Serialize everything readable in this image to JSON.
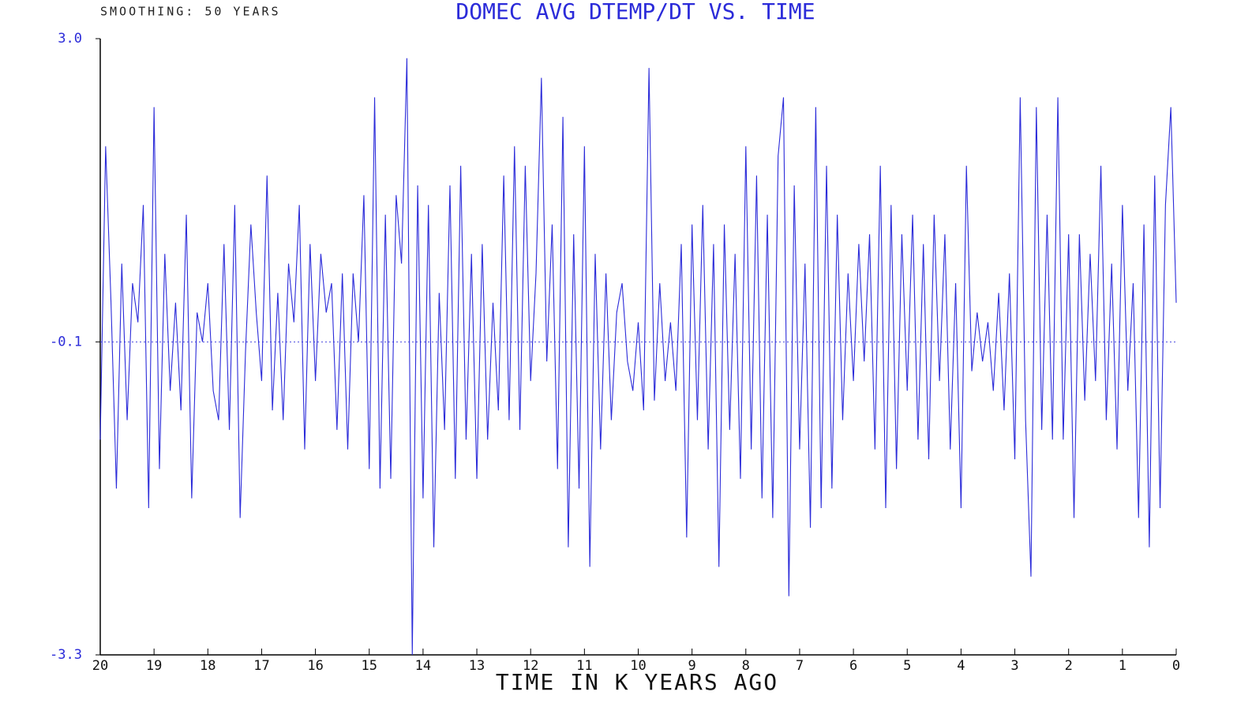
{
  "chart_data": {
    "type": "line",
    "title": "DOMEC AVG DTEMP/DT VS. TIME",
    "subtitle": "SMOOTHING: 50 YEARS",
    "x_label": "TIME IN K YEARS AGO",
    "color": "#2b2bd9",
    "xlim": [
      20,
      0
    ],
    "xticks": [
      20,
      19,
      18,
      17,
      16,
      15,
      14,
      13,
      12,
      11,
      10,
      9,
      8,
      7,
      6,
      5,
      4,
      3,
      2,
      1,
      0
    ],
    "ylim": [
      -3.3,
      3.0
    ],
    "yticks": [
      {
        "value": 3,
        "label": "3.0"
      },
      -0.1,
      -3.3
    ],
    "reference_line": -0.1,
    "x": [
      20,
      19.9,
      19.8,
      19.7,
      19.6,
      19.5,
      19.4,
      19.3,
      19.2,
      19.1,
      19,
      18.9,
      18.8,
      18.7,
      18.6,
      18.5,
      18.4,
      18.3,
      18.2,
      18.1,
      18,
      17.9,
      17.8,
      17.7,
      17.6,
      17.5,
      17.4,
      17.3,
      17.2,
      17.1,
      17,
      16.9,
      16.8,
      16.7,
      16.6,
      16.5,
      16.4,
      16.3,
      16.2,
      16.1,
      16,
      15.9,
      15.8,
      15.7,
      15.6,
      15.5,
      15.4,
      15.3,
      15.2,
      15.1,
      15,
      14.9,
      14.8,
      14.7,
      14.6,
      14.5,
      14.4,
      14.3,
      14.2,
      14.1,
      14,
      13.9,
      13.8,
      13.7,
      13.6,
      13.5,
      13.4,
      13.3,
      13.2,
      13.1,
      13,
      12.9,
      12.8,
      12.7,
      12.6,
      12.5,
      12.4,
      12.3,
      12.2,
      12.1,
      12,
      11.9,
      11.8,
      11.7,
      11.6,
      11.5,
      11.4,
      11.3,
      11.2,
      11.1,
      11,
      10.9,
      10.8,
      10.7,
      10.6,
      10.5,
      10.4,
      10.3,
      10.2,
      10.1,
      10,
      9.9,
      9.8,
      9.7,
      9.6,
      9.5,
      9.4,
      9.3,
      9.2,
      9.1,
      9,
      8.9,
      8.8,
      8.7,
      8.6,
      8.5,
      8.4,
      8.3,
      8.2,
      8.1,
      8,
      7.9,
      7.8,
      7.7,
      7.6,
      7.5,
      7.4,
      7.3,
      7.2,
      7.1,
      7,
      6.9,
      6.8,
      6.7,
      6.6,
      6.5,
      6.4,
      6.3,
      6.2,
      6.1,
      6,
      5.9,
      5.8,
      5.7,
      5.6,
      5.5,
      5.4,
      5.3,
      5.2,
      5.1,
      5,
      4.9,
      4.8,
      4.7,
      4.6,
      4.5,
      4.4,
      4.3,
      4.2,
      4.1,
      4,
      3.9,
      3.8,
      3.7,
      3.6,
      3.5,
      3.4,
      3.3,
      3.2,
      3.1,
      3,
      2.9,
      2.8,
      2.7,
      2.6,
      2.5,
      2.4,
      2.3,
      2.2,
      2.1,
      2,
      1.9,
      1.8,
      1.7,
      1.6,
      1.5,
      1.4,
      1.3,
      1.2,
      1.1,
      1,
      0.9,
      0.8,
      0.7,
      0.6,
      0.5,
      0.4,
      0.3,
      0.2,
      0.1,
      0
    ],
    "values": [
      -1.1,
      1.9,
      0.3,
      -1.6,
      0.7,
      -0.9,
      0.5,
      0.1,
      1.3,
      -1.8,
      2.3,
      -1.4,
      0.8,
      -0.6,
      0.3,
      -0.8,
      1.2,
      -1.7,
      0.2,
      -0.1,
      0.5,
      -0.6,
      -0.9,
      0.9,
      -1.0,
      1.3,
      -1.9,
      -0.2,
      1.1,
      0.2,
      -0.5,
      1.6,
      -0.8,
      0.4,
      -0.9,
      0.7,
      0.1,
      1.3,
      -1.2,
      0.9,
      -0.5,
      0.8,
      0.2,
      0.5,
      -1.0,
      0.6,
      -1.2,
      0.6,
      -0.1,
      1.4,
      -1.4,
      2.4,
      -1.6,
      1.2,
      -1.5,
      1.4,
      0.7,
      2.8,
      -3.3,
      1.5,
      -1.7,
      1.3,
      -2.2,
      0.4,
      -1.0,
      1.5,
      -1.5,
      1.7,
      -1.1,
      0.8,
      -1.5,
      0.9,
      -1.1,
      0.3,
      -0.8,
      1.6,
      -0.9,
      1.9,
      -1.0,
      1.7,
      -0.5,
      0.6,
      2.6,
      -0.3,
      1.1,
      -1.4,
      2.2,
      -2.2,
      1.0,
      -1.6,
      1.9,
      -2.4,
      0.8,
      -1.2,
      0.6,
      -0.9,
      0.2,
      0.5,
      -0.3,
      -0.6,
      0.1,
      -0.8,
      2.7,
      -0.7,
      0.5,
      -0.5,
      0.1,
      -0.6,
      0.9,
      -2.1,
      1.1,
      -0.9,
      1.3,
      -1.2,
      0.9,
      -2.4,
      1.1,
      -1.0,
      0.8,
      -1.5,
      1.9,
      -1.2,
      1.6,
      -1.7,
      1.2,
      -1.9,
      1.8,
      2.4,
      -2.7,
      1.5,
      -1.2,
      0.7,
      -2.0,
      2.3,
      -1.8,
      1.7,
      -1.6,
      1.2,
      -0.9,
      0.6,
      -0.5,
      0.9,
      -0.3,
      1.0,
      -1.2,
      1.7,
      -1.8,
      1.3,
      -1.4,
      1.0,
      -0.6,
      1.2,
      -1.1,
      0.9,
      -1.3,
      1.2,
      -0.5,
      1.0,
      -1.2,
      0.5,
      -1.8,
      1.7,
      -0.4,
      0.2,
      -0.3,
      0.1,
      -0.6,
      0.4,
      -0.8,
      0.6,
      -1.3,
      2.4,
      -0.9,
      -2.5,
      2.3,
      -1.0,
      1.2,
      -1.1,
      2.4,
      -1.1,
      1.0,
      -1.9,
      1.0,
      -0.7,
      0.8,
      -0.5,
      1.7,
      -0.9,
      0.7,
      -1.2,
      1.3,
      -0.6,
      0.5,
      -1.9,
      1.1,
      -2.2,
      1.6,
      -1.8,
      1.3,
      2.3,
      0.3
    ]
  }
}
